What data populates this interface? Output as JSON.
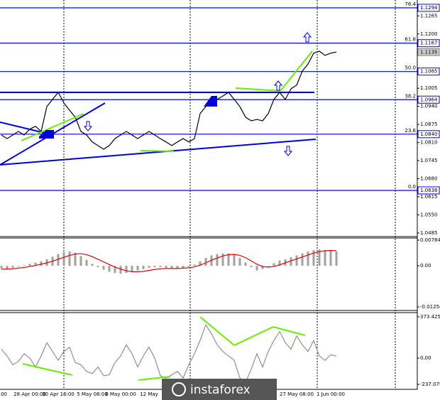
{
  "chart_data": [
    {
      "type": "line",
      "categories": [
        "00",
        null,
        null,
        null,
        null,
        "28 Apr 00:00",
        null,
        null,
        null,
        null,
        "30 Apr 16:00",
        null,
        null,
        null,
        null,
        null,
        "5 May 08:00",
        null,
        null,
        null,
        null,
        "8 May 00:00",
        null,
        null,
        null,
        null,
        "12 May",
        null,
        null,
        null,
        null,
        null,
        null,
        null,
        null,
        null,
        null,
        null,
        null,
        null,
        null,
        null,
        null,
        null,
        null,
        null,
        null,
        null,
        null,
        null,
        null,
        null,
        "27 May 08:00",
        null,
        null,
        null,
        null,
        null,
        "1 Jun 00:00",
        null
      ],
      "series": [
        {
          "color": "#000000",
          "values": [
            1.0837,
            1.0824,
            1.0837,
            1.085,
            1.0837,
            1.0858,
            1.0868,
            1.085,
            1.0939,
            1.0965,
            1.099,
            1.0952,
            1.0926,
            1.0901,
            1.085,
            1.0837,
            1.0812,
            1.0799,
            1.0786,
            1.0799,
            1.0824,
            1.0837,
            1.085,
            1.0837,
            1.0824,
            1.0837,
            1.085,
            1.0837,
            1.0824,
            1.0812,
            1.0799,
            1.0812,
            1.0824,
            1.0812,
            1.0824,
            1.0914,
            1.0939,
            1.0952,
            1.0965,
            1.0977,
            1.099,
            1.0965,
            1.0939,
            1.0901,
            1.0888,
            1.0893,
            1.0888,
            1.0914,
            1.0965,
            1.099,
            1.0965,
            1.1003,
            1.1016,
            1.1067,
            1.1092,
            1.1131,
            1.1138,
            1.1123,
            1.1131,
            1.1135
          ]
        }
      ],
      "ylim": [
        1.0472,
        1.1322
      ],
      "yticks": [
        1.1265,
        {
          "value": 1.12,
          "label": "1.1200"
        },
        1.1005,
        {
          "value": 1.094,
          "label": "1.0940"
        },
        1.0875,
        {
          "value": 1.081,
          "label": "1.0810"
        },
        1.0745,
        {
          "value": 1.068,
          "label": "1.0680"
        },
        1.0615,
        {
          "value": 1.055,
          "label": "1.0550"
        },
        1.0485
      ],
      "levels": [
        {
          "ratio": "76.4",
          "value": 1.1294,
          "label": "1.1294"
        },
        {
          "ratio": "61.8",
          "value": 1.1167,
          "label": "1.1167"
        },
        {
          "ratio": "50.0",
          "value": 1.1065,
          "label": "1.1065"
        },
        {
          "ratio": "38.2",
          "value": 1.0964,
          "label": "1.0964"
        },
        {
          "ratio": "23.6",
          "value": 1.084,
          "label": "1.0840"
        },
        {
          "ratio": "0.0",
          "value": 1.0638,
          "label": "1.0638"
        }
      ],
      "last": {
        "value": 1.1135,
        "label": "1.1135"
      },
      "level_color": "#0000ff",
      "watermark": "instaforex"
    },
    {
      "type": "bar",
      "series": [
        {
          "type": "bar",
          "color": "#a0a0a0",
          "values": [
            -0.0008,
            -0.001,
            -0.0006,
            -0.0002,
            0.0002,
            0.0006,
            0.001,
            0.0014,
            0.002,
            0.0028,
            0.0036,
            0.0042,
            0.0044,
            0.004,
            0.003,
            0.0018,
            0.0006,
            -0.0004,
            -0.0012,
            -0.0018,
            -0.0022,
            -0.0024,
            -0.0022,
            -0.0018,
            -0.0014,
            -0.001,
            -0.0006,
            -0.0004,
            -0.0004,
            -0.0006,
            -0.0008,
            -0.0008,
            -0.0006,
            -0.0004,
            0.0004,
            0.0014,
            0.0024,
            0.0032,
            0.0036,
            0.0038,
            0.0038,
            0.0034,
            0.0024,
            0.001,
            -0.0004,
            -0.0014,
            -0.001,
            -0.0002,
            0.0008,
            0.0016,
            0.002,
            0.0026,
            0.0032,
            0.0038,
            0.0044,
            0.0048,
            0.005,
            0.0048,
            0.0046,
            0.0044
          ]
        },
        {
          "type": "line",
          "color": "#e00000",
          "values": [
            -0.001,
            -0.001,
            -0.0009,
            -0.0007,
            -0.0005,
            -0.0002,
            0.0001,
            0.0005,
            0.0009,
            0.0014,
            0.002,
            0.0026,
            0.0032,
            0.0036,
            0.0037,
            0.0034,
            0.0028,
            0.002,
            0.0012,
            0.0004,
            -0.0004,
            -0.001,
            -0.0015,
            -0.0018,
            -0.0018,
            -0.0017,
            -0.0014,
            -0.0011,
            -0.0009,
            -0.0008,
            -0.0008,
            -0.0008,
            -0.0007,
            -0.0006,
            -0.0003,
            0.0002,
            0.0009,
            0.0017,
            0.0024,
            0.003,
            0.0034,
            0.0035,
            0.0032,
            0.0025,
            0.0015,
            0.0005,
            -0.0002,
            -0.0004,
            -0.0002,
            0.0003,
            0.0009,
            0.0015,
            0.0021,
            0.0027,
            0.0033,
            0.0039,
            0.0043,
            0.0046,
            0.0047,
            0.0046
          ]
        }
      ],
      "ylim": [
        -0.01363,
        0.00849
      ],
      "yticks": [
        0.00784,
        {
          "value": 0,
          "label": "0.00"
        },
        -0.01254
      ]
    },
    {
      "type": "line",
      "series": [
        {
          "type": "line",
          "color": "#909090",
          "values": [
            80,
            20,
            -60,
            -30,
            40,
            0,
            -80,
            20,
            140,
            60,
            -20,
            60,
            100,
            -40,
            -60,
            -120,
            -140,
            -80,
            -160,
            -150,
            -40,
            20,
            120,
            40,
            -80,
            20,
            100,
            0,
            -160,
            -180,
            -150,
            -120,
            -180,
            -60,
            40,
            160,
            300,
            220,
            120,
            60,
            20,
            -20,
            -180,
            -220,
            -100,
            40,
            -80,
            60,
            160,
            240,
            140,
            80,
            200,
            120,
            60,
            160,
            20,
            -20,
            30,
            20
          ]
        }
      ],
      "ylim": [
        -282,
        411
      ],
      "yticks": [
        373.4251,
        {
          "value": 0,
          "label": "0.00"
        },
        -237.079
      ]
    }
  ]
}
